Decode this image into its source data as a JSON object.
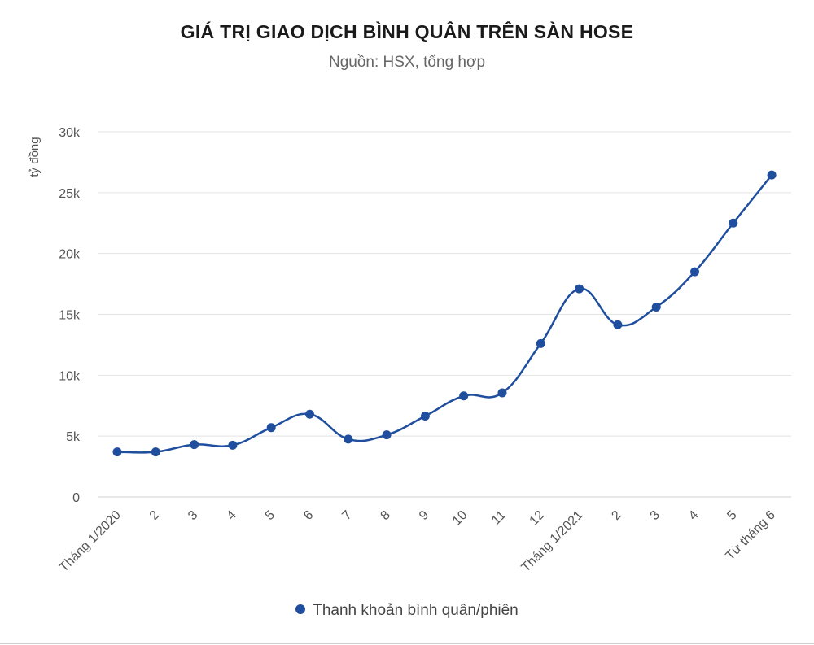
{
  "chart_data": {
    "type": "line",
    "title": "GIÁ TRỊ GIAO DỊCH BÌNH QUÂN TRÊN SÀN HOSE",
    "subtitle": "Nguồn: HSX, tổng hợp",
    "xlabel": "",
    "ylabel": "tỷ đồng",
    "categories": [
      "Tháng 1/2020",
      "2",
      "3",
      "4",
      "5",
      "6",
      "7",
      "8",
      "9",
      "10",
      "11",
      "12",
      "Tháng 1/2021",
      "2",
      "3",
      "4",
      "5",
      "Từ tháng 6"
    ],
    "series": [
      {
        "name": "Thanh khoản bình quân/phiên",
        "values": [
          3700,
          3700,
          4300,
          4250,
          5700,
          6800,
          4750,
          5100,
          6650,
          8300,
          8550,
          12600,
          17100,
          14150,
          15600,
          18500,
          22500,
          26450
        ]
      }
    ],
    "ylim": [
      0,
      30000
    ],
    "yticks": [
      {
        "value": 0,
        "label": "0"
      },
      {
        "value": 5000,
        "label": "5k"
      },
      {
        "value": 10000,
        "label": "10k"
      },
      {
        "value": 15000,
        "label": "15k"
      },
      {
        "value": 20000,
        "label": "20k"
      },
      {
        "value": 25000,
        "label": "25k"
      },
      {
        "value": 30000,
        "label": "30k"
      }
    ],
    "grid": true,
    "legend_position": "bottom",
    "color": "#1f4e9e"
  }
}
